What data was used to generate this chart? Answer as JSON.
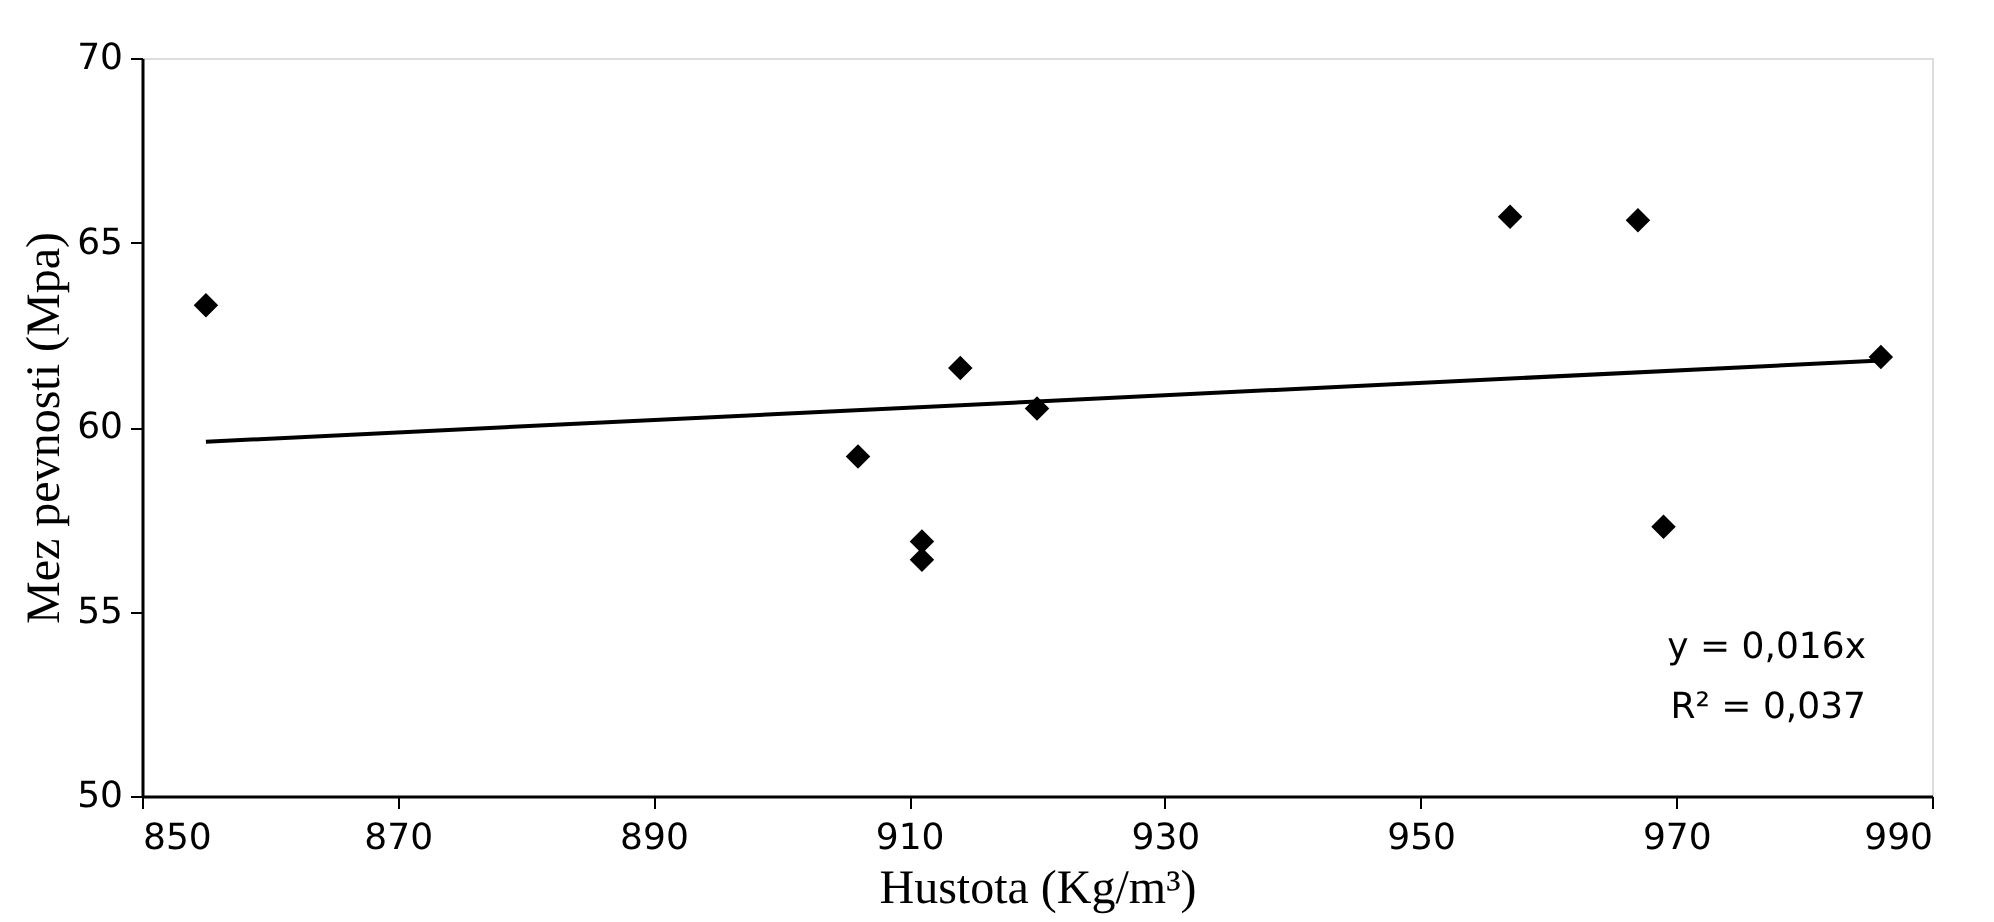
{
  "chart_data": {
    "type": "scatter",
    "xlabel": "Hustota (Kg/m³)",
    "ylabel": "Mez pevnosti (Mpa)",
    "xlim": [
      850,
      990
    ],
    "xticks": [
      850,
      870,
      890,
      910,
      930,
      950,
      970,
      990
    ],
    "ylim": [
      50,
      70
    ],
    "yticks": [
      50,
      55,
      60,
      65,
      70
    ],
    "marker": "diamond",
    "series": [
      {
        "color": "#000000",
        "x": [
          855,
          906,
          911,
          911,
          914,
          920,
          957,
          967,
          969,
          986
        ],
        "values": [
          63.3,
          59.2,
          56.9,
          56.4,
          61.6,
          60.5,
          65.7,
          65.6,
          57.3,
          61.9
        ]
      },
      {
        "type": "line",
        "marker": "none",
        "color": "#000000",
        "x": [
          855,
          986
        ],
        "values": [
          59.6,
          61.8
        ]
      }
    ],
    "annotations": [
      "y = 0,016x",
      "R² = 0,037"
    ]
  }
}
